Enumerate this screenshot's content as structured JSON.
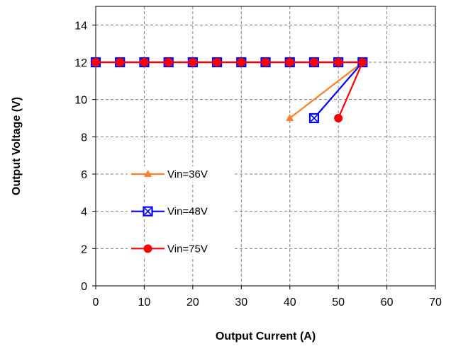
{
  "chart_data": {
    "type": "line",
    "xlabel": "Output Current (A)",
    "ylabel": "Output Voltage (V)",
    "xlim": [
      0,
      70
    ],
    "ylim": [
      0,
      15
    ],
    "xticks": [
      "0",
      "10",
      "20",
      "30",
      "40",
      "50",
      "60",
      "70"
    ],
    "yticks": [
      "0",
      "2",
      "4",
      "6",
      "8",
      "10",
      "12",
      "14"
    ],
    "grid": true,
    "legend_position": "center-left",
    "series": [
      {
        "name": "Vin=36V",
        "color": "#ff7f27",
        "marker": "triangle",
        "x": [
          0,
          5,
          10,
          15,
          20,
          25,
          30,
          35,
          40,
          45,
          50,
          55,
          40
        ],
        "y": [
          12,
          12,
          12,
          12,
          12,
          12,
          12,
          12,
          12,
          12,
          12,
          12,
          9
        ]
      },
      {
        "name": "Vin=48V",
        "color": "#0000ff",
        "marker": "square-x",
        "x": [
          0,
          5,
          10,
          15,
          20,
          25,
          30,
          35,
          40,
          45,
          50,
          55,
          45
        ],
        "y": [
          12,
          12,
          12,
          12,
          12,
          12,
          12,
          12,
          12,
          12,
          12,
          12,
          9
        ]
      },
      {
        "name": "Vin=75V",
        "color": "#ff0000",
        "marker": "circle",
        "x": [
          0,
          5,
          10,
          15,
          20,
          25,
          30,
          35,
          40,
          45,
          50,
          55,
          50
        ],
        "y": [
          12,
          12,
          12,
          12,
          12,
          12,
          12,
          12,
          12,
          12,
          12,
          12,
          9
        ]
      }
    ]
  }
}
